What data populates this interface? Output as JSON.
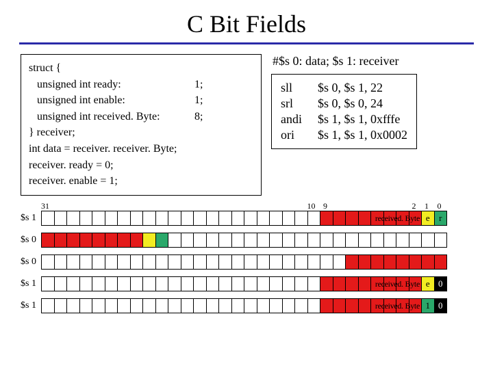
{
  "title": "C Bit Fields",
  "code": {
    "lines": [
      [
        "struct {",
        ""
      ],
      [
        "   unsigned int ready:",
        "1;"
      ],
      [
        "   unsigned int enable:",
        "1;"
      ],
      [
        "   unsigned int received. Byte:",
        "8;"
      ],
      [
        "} receiver;",
        ""
      ],
      [
        "int data = receiver. receiver. Byte;",
        ""
      ],
      [
        "receiver. ready = 0;",
        ""
      ],
      [
        "receiver. enable = 1;",
        ""
      ]
    ]
  },
  "asm": {
    "header": "#$s 0: data;  $s 1: receiver",
    "rows": [
      [
        "sll",
        "$s 0, $s 1, 22"
      ],
      [
        "srl",
        "$s 0, $s 0, 24"
      ],
      [
        "andi",
        "$s 1, $s 1, 0xfffe"
      ],
      [
        "ori",
        "$s 1, $s 1, 0x0002"
      ]
    ]
  },
  "indices": [
    "31",
    "10",
    "9",
    "2",
    "1",
    "0"
  ],
  "colors": {
    "red": "#e41a1a",
    "yellow": "#f2ec22",
    "green": "#2aa86a",
    "white": "#ffffff",
    "black": "#000000"
  },
  "registers": [
    {
      "label": "$s 1",
      "cells": [
        {
          "n": 22,
          "c": "white"
        },
        {
          "n": 8,
          "c": "red",
          "text": "received. Byte",
          "textcolor": "black"
        },
        {
          "n": 1,
          "c": "yellow",
          "text": "e",
          "textcolor": "black"
        },
        {
          "n": 1,
          "c": "green",
          "text": "r",
          "textcolor": "black"
        }
      ]
    },
    {
      "label": "$s 0",
      "cells": [
        {
          "n": 8,
          "c": "red"
        },
        {
          "n": 1,
          "c": "yellow"
        },
        {
          "n": 1,
          "c": "green"
        },
        {
          "n": 22,
          "c": "white"
        }
      ]
    },
    {
      "label": "$s 0",
      "cells": [
        {
          "n": 24,
          "c": "white"
        },
        {
          "n": 8,
          "c": "red"
        }
      ]
    },
    {
      "label": "$s 1",
      "cells": [
        {
          "n": 22,
          "c": "white"
        },
        {
          "n": 8,
          "c": "red",
          "text": "received. Byte",
          "textcolor": "black"
        },
        {
          "n": 1,
          "c": "yellow",
          "text": "e",
          "textcolor": "black"
        },
        {
          "n": 1,
          "c": "black",
          "text": "0",
          "textcolor": "white"
        }
      ]
    },
    {
      "label": "$s 1",
      "cells": [
        {
          "n": 22,
          "c": "white"
        },
        {
          "n": 8,
          "c": "red",
          "text": "received. Byte",
          "textcolor": "black"
        },
        {
          "n": 1,
          "c": "green",
          "text": "1",
          "textcolor": "black"
        },
        {
          "n": 1,
          "c": "black",
          "text": "0",
          "textcolor": "white"
        }
      ]
    }
  ]
}
